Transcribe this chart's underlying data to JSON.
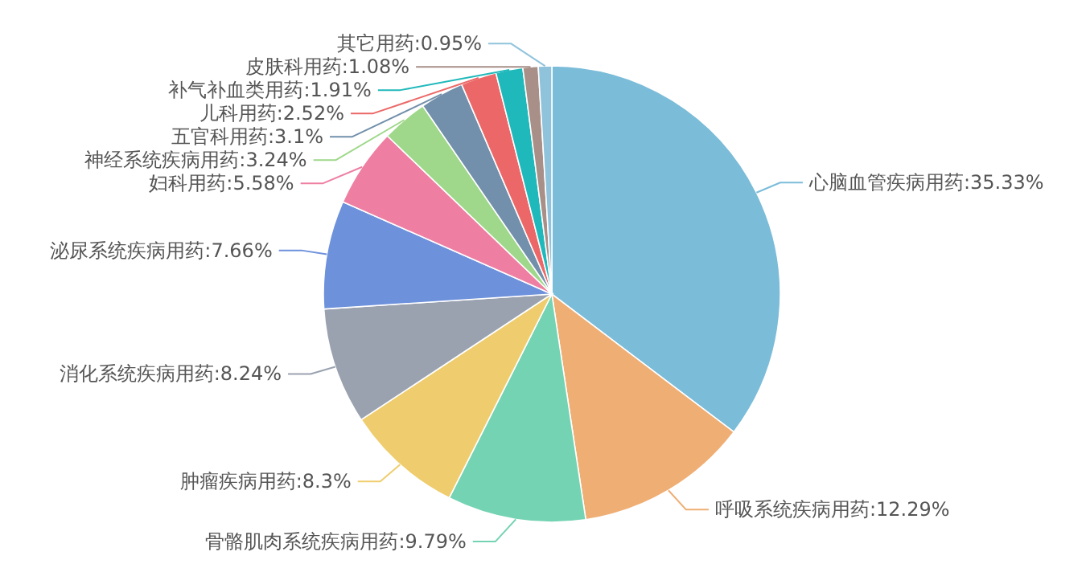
{
  "chart_data": {
    "type": "pie",
    "categories": [
      "心脑血管疾病用药",
      "呼吸系统疾病用药",
      "骨骼肌肉系统疾病用药",
      "肿瘤疾病用药",
      "消化系统疾病用药",
      "泌尿系统疾病用药",
      "妇科用药",
      "神经系统疾病用药",
      "五官科用药",
      "儿科用药",
      "补气补血类用药",
      "皮肤科用药",
      "其它用药"
    ],
    "values": [
      35.33,
      12.29,
      9.79,
      8.3,
      8.24,
      7.66,
      5.58,
      3.24,
      3.1,
      2.52,
      1.91,
      1.08,
      0.95
    ],
    "value_labels": [
      "35.33%",
      "12.29%",
      "9.79%",
      "8.3%",
      "8.24%",
      "7.66%",
      "5.58%",
      "3.24%",
      "3.1%",
      "2.52%",
      "1.91%",
      "1.08%",
      "0.95%"
    ],
    "colors": [
      "#7bbcd9",
      "#efae74",
      "#74d3b3",
      "#efcd6e",
      "#9aa2b0",
      "#6e91dc",
      "#ee7fa3",
      "#9fd88a",
      "#7290ab",
      "#ec6868",
      "#20b9bb",
      "#a88f88",
      "#8fc3dc"
    ]
  }
}
